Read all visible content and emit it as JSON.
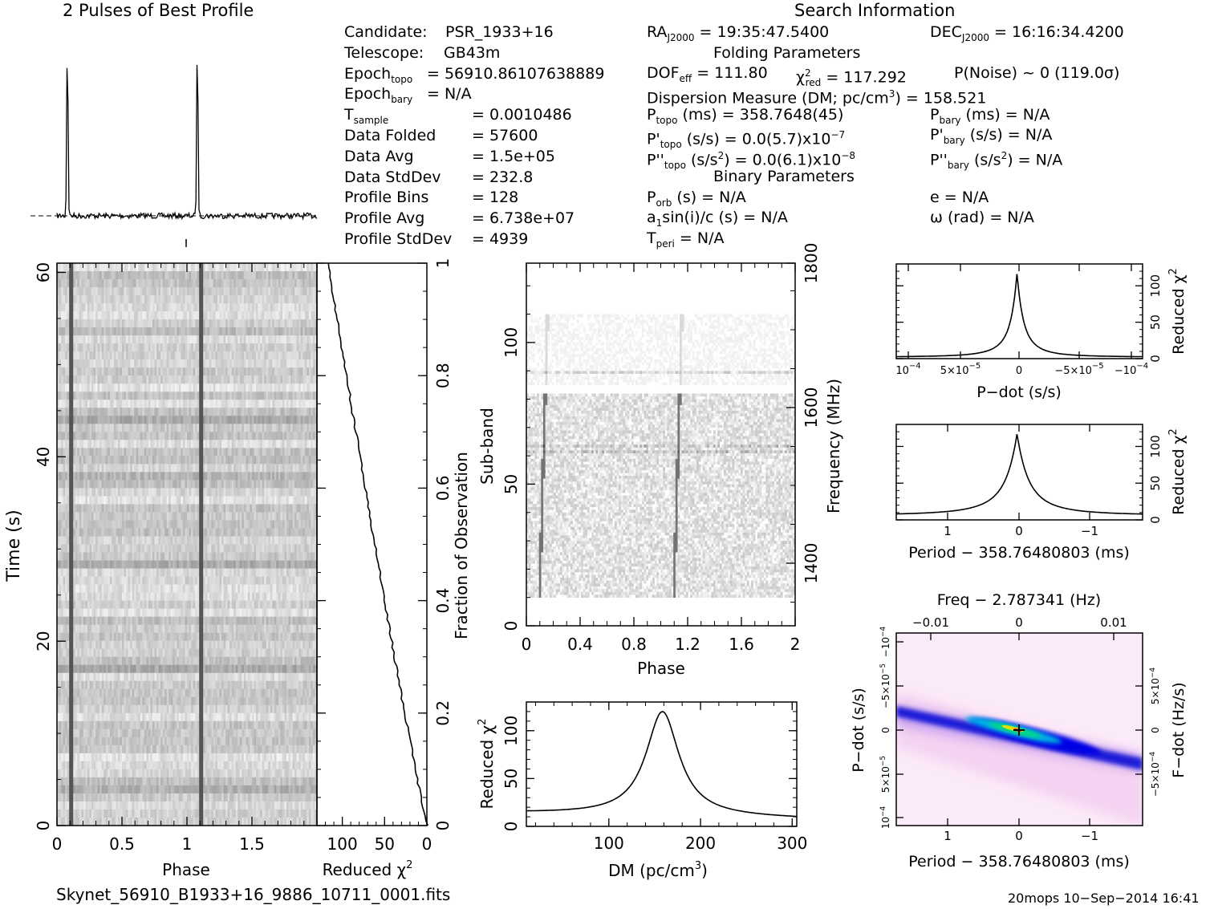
{
  "profile": {
    "title": "2 Pulses of Best Profile",
    "peaks_phase": [
      0.08,
      1.08
    ]
  },
  "info": {
    "left": [
      {
        "label": "Candidate:",
        "value": "PSR_1933+16"
      },
      {
        "label": "Telescope:",
        "value": "GB43m"
      },
      {
        "label": "Epoch",
        "sub": "topo",
        "value": "= 56910.86107638889"
      },
      {
        "label": "Epoch",
        "sub": "bary",
        "value": "= N/A"
      },
      {
        "label": "T",
        "sub": "sample",
        "value": "=   0.0010486"
      },
      {
        "label": "Data Folded",
        "value": "=   57600"
      },
      {
        "label": "Data Avg",
        "value": "=   1.5e+05"
      },
      {
        "label": "Data StdDev",
        "value": "=   232.8"
      },
      {
        "label": "Profile Bins",
        "value": "=   128"
      },
      {
        "label": "Profile Avg",
        "value": "=   6.738e+07"
      },
      {
        "label": "Profile StdDev",
        "value": "=   4939"
      }
    ],
    "search_title": "Search Information",
    "ra": {
      "label": "RA",
      "sub": "J2000",
      "value": " = 19:35:47.5400"
    },
    "dec": {
      "label": "DEC",
      "sub": "J2000",
      "value": " = 16:16:34.4200"
    },
    "folding_title": "Folding Parameters",
    "dof": "DOF_eff = 111.80",
    "dof_label": "DOF",
    "dof_sub": "eff",
    "dof_value": " = 111.80",
    "chi_value": " = 117.292",
    "chi_sub": "red",
    "pnoise": "P(Noise) ~ 0    (119.0σ)",
    "dm_line": "Dispersion Measure (DM; pc/cm",
    "dm_exp": "3",
    "dm_value": ") = 158.521",
    "ptopo_value": " (ms) =  358.7648(45)",
    "ptopo_sub": "topo",
    "pbary_value": " (ms) = N/A",
    "pbary_sub": "bary",
    "pdtopo_value": " (s/s) = 0.0(5.7)x10",
    "pdtopo_exp": "−7",
    "pdbary_value": " (s/s) = N/A",
    "pddtopo_value": " (s/s",
    "pddtopo_tail": ") = 0.0(6.1)x10",
    "pddtopo_exp": "−8",
    "pddbary_value": " (s/s",
    "pddbary_tail": ") = N/A",
    "binary_title": "Binary Parameters",
    "porb": " (s) = N/A",
    "porb_sub": "orb",
    "asini": "a",
    "asini_rest": "sin(i)/c (s) = N/A",
    "tperi_sub": "peri",
    "tperi_value": " = N/A",
    "ecc": "e = N/A",
    "omega": "ω (rad) = N/A"
  },
  "time_phase": {
    "xlabel": "Phase",
    "ylabel": "Time (s)",
    "xticks": [
      "0",
      "0.5",
      "1",
      "1.5"
    ],
    "yticks": [
      "0",
      "20",
      "40",
      "60"
    ],
    "ylim": [
      0,
      61
    ]
  },
  "chi_vs_time": {
    "xlabel": "Reduced χ",
    "xlabel_exp": "2",
    "xticks": [
      "100",
      "50",
      "0"
    ],
    "right_label": "Fraction of Observation",
    "right_ticks": [
      "0",
      "0.2",
      "0.4",
      "0.6",
      "0.8",
      "1"
    ]
  },
  "subband": {
    "xlabel": "Phase",
    "ylabel": "Sub-band",
    "right_label": "Frequency (MHz)",
    "xticks": [
      "0",
      "0.4",
      "0.8",
      "1.2",
      "1.6",
      "2"
    ],
    "yticks": [
      "0",
      "50",
      "100"
    ],
    "right_ticks": [
      "1400",
      "1600",
      "1800"
    ]
  },
  "dm_curve": {
    "xlabel": "DM (pc/cm",
    "xlabel_exp": "3",
    "xlabel_tail": ")",
    "ylabel": "Reduced χ",
    "ylabel_exp": "2",
    "xticks": [
      "100",
      "200",
      "300"
    ],
    "yticks": [
      "0",
      "50",
      "100"
    ],
    "peak_dm": 158.5,
    "peak_chi": 117
  },
  "pdot_curve": {
    "xlabel": "P−dot (s/s)",
    "ylabel": "Reduced χ",
    "ylabel_exp": "2",
    "xticks": [
      {
        "m": "10",
        "e": "−4"
      },
      {
        "m": "5×10",
        "e": "−5"
      },
      {
        "m": "0",
        "e": ""
      },
      {
        "m": "−5×10",
        "e": "−5"
      },
      {
        "m": "−10",
        "e": "−4"
      }
    ],
    "yticks": [
      "0",
      "50",
      "100"
    ]
  },
  "period_curve": {
    "xlabel": "Period − 358.76480803 (ms)",
    "ylabel": "Reduced χ",
    "ylabel_exp": "2",
    "xticks": [
      "1",
      "0",
      "−1"
    ],
    "yticks": [
      "0",
      "50",
      "100"
    ]
  },
  "pp_plane": {
    "top_label": "Freq − 2.787341 (Hz)",
    "top_ticks": [
      "−0.01",
      "0",
      "0.01"
    ],
    "xlabel": "Period − 358.76480803 (ms)",
    "xticks": [
      "1",
      "0",
      "−1"
    ],
    "ylabel": "P−dot (s/s)",
    "right_label": "F−dot (Hz/s)",
    "left_ticks": [
      {
        "m": "−10",
        "e": "−4"
      },
      {
        "m": "−5×10",
        "e": "−5"
      },
      {
        "m": "0",
        "e": ""
      },
      {
        "m": "5×10",
        "e": "−5"
      },
      {
        "m": "10",
        "e": "−4"
      }
    ],
    "right_ticks": [
      {
        "m": "5×10",
        "e": "−4"
      },
      {
        "m": "0",
        "e": ""
      },
      {
        "m": "−5×10",
        "e": "−4"
      }
    ]
  },
  "footer": {
    "filename": "Skynet_56910_B1933+16_9886_10711_0001.fits",
    "stamp": "20mops 10−Sep−2014 16:41"
  },
  "chart_data": [
    {
      "type": "line",
      "title": "2 Pulses of Best Profile",
      "x": [
        0,
        0.08,
        1.0,
        1.08,
        2.0
      ],
      "values": [
        0.05,
        1.0,
        0.05,
        1.0,
        0.05
      ]
    },
    {
      "type": "heatmap",
      "xlabel": "Phase",
      "ylabel": "Time (s)",
      "ylim": [
        0,
        61
      ]
    },
    {
      "type": "line",
      "xlabel": "DM (pc/cm3)",
      "ylabel": "Reduced χ2",
      "x": [
        10,
        100,
        140,
        158.5,
        180,
        220,
        300
      ],
      "values": [
        15,
        35,
        80,
        117,
        70,
        30,
        10
      ]
    },
    {
      "type": "line",
      "xlabel": "P−dot (s/s)",
      "ylabel": "Reduced χ2",
      "peak": 117
    },
    {
      "type": "line",
      "xlabel": "Period − 358.76480803 (ms)",
      "ylabel": "Reduced χ2",
      "peak": 117
    },
    {
      "type": "heatmap",
      "xlabel": "Period − 358.76480803 (ms)",
      "ylabel": "P−dot (s/s)"
    }
  ]
}
